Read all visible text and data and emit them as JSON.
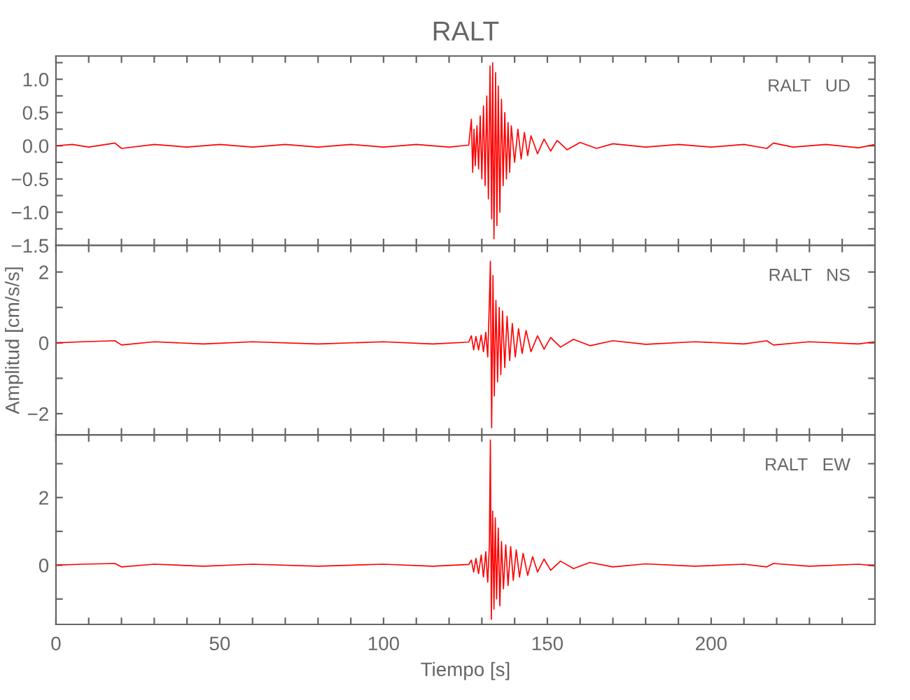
{
  "chart_data": [
    {
      "type": "line",
      "title": "RALT",
      "annotations": [
        "RALT   UD"
      ],
      "tick_labels": "y",
      "xlim": [
        0,
        250
      ],
      "xticks": [
        0,
        {
          "value": 10,
          "label": null
        },
        {
          "value": 20,
          "label": null
        },
        {
          "value": 30,
          "label": null
        },
        {
          "value": 40,
          "label": null
        },
        50,
        {
          "value": 60,
          "label": null
        },
        {
          "value": 70,
          "label": null
        },
        {
          "value": 80,
          "label": null
        },
        {
          "value": 90,
          "label": null
        },
        100,
        {
          "value": 110,
          "label": null
        },
        {
          "value": 120,
          "label": null
        },
        {
          "value": 130,
          "label": null
        },
        {
          "value": 140,
          "label": null
        },
        150,
        {
          "value": 160,
          "label": null
        },
        {
          "value": 170,
          "label": null
        },
        {
          "value": 180,
          "label": null
        },
        {
          "value": 190,
          "label": null
        },
        200,
        {
          "value": 210,
          "label": null
        },
        {
          "value": 220,
          "label": null
        },
        {
          "value": 230,
          "label": null
        },
        {
          "value": 240,
          "label": null
        }
      ],
      "ylim": [
        -1.5,
        1.35
      ],
      "yticks": [
        {
          "value": -1.5,
          "label": "−1.5"
        },
        {
          "value": -1.25,
          "label": null
        },
        {
          "value": -1.0,
          "label": "−1.0"
        },
        {
          "value": -0.75,
          "label": null
        },
        {
          "value": -0.5,
          "label": "−0.5"
        },
        {
          "value": -0.25,
          "label": null
        },
        {
          "value": 0,
          "label": "0.0"
        },
        {
          "value": 0.25,
          "label": null
        },
        {
          "value": 0.5,
          "label": "0.5"
        },
        {
          "value": 0.75,
          "label": null
        },
        {
          "value": 1.0,
          "label": "1.0"
        },
        {
          "value": 1.25,
          "label": null
        }
      ],
      "series": [
        {
          "color": "#ff0000",
          "x": [
            0,
            5,
            10,
            18,
            20,
            30,
            40,
            50,
            60,
            70,
            80,
            90,
            100,
            110,
            120,
            126,
            126.8,
            127.2,
            127.6,
            128,
            128.5,
            129,
            129.5,
            130,
            130.5,
            131,
            131.5,
            132,
            132.5,
            133,
            133.3,
            133.7,
            134.2,
            134.6,
            135,
            135.5,
            136,
            136.5,
            137,
            137.5,
            138,
            138.5,
            139,
            140,
            141,
            142,
            143,
            144,
            145,
            147,
            149,
            151,
            153,
            156,
            160,
            165,
            170,
            180,
            190,
            200,
            210,
            217,
            219,
            225,
            235,
            245,
            250
          ],
          "values": [
            0,
            0.02,
            -0.02,
            0.04,
            -0.04,
            0.02,
            -0.02,
            0.02,
            -0.02,
            0.02,
            -0.02,
            0.02,
            -0.02,
            0.02,
            -0.02,
            0.01,
            0.4,
            -0.4,
            0.25,
            -0.3,
            0.3,
            -0.35,
            0.45,
            -0.5,
            0.6,
            -0.6,
            0.75,
            -0.8,
            1.2,
            -1.1,
            1.25,
            -1.4,
            1.1,
            -1.2,
            0.9,
            -1.0,
            0.7,
            -0.6,
            0.5,
            -0.5,
            0.35,
            -0.4,
            0.3,
            -0.25,
            0.25,
            -0.2,
            0.2,
            -0.15,
            0.15,
            -0.12,
            0.1,
            -0.08,
            0.08,
            -0.06,
            0.05,
            -0.04,
            0.03,
            -0.02,
            0.02,
            -0.02,
            0.02,
            -0.04,
            0.04,
            -0.02,
            0.02,
            -0.03,
            0.02
          ]
        }
      ]
    },
    {
      "type": "line",
      "ylabel": "Amplitud [cm/s/s]",
      "annotations": [
        "RALT   NS"
      ],
      "tick_labels": "y",
      "xlim": [
        0,
        250
      ],
      "xticks": [
        0,
        {
          "value": 10,
          "label": null
        },
        {
          "value": 20,
          "label": null
        },
        {
          "value": 30,
          "label": null
        },
        {
          "value": 40,
          "label": null
        },
        50,
        {
          "value": 60,
          "label": null
        },
        {
          "value": 70,
          "label": null
        },
        {
          "value": 80,
          "label": null
        },
        {
          "value": 90,
          "label": null
        },
        100,
        {
          "value": 110,
          "label": null
        },
        {
          "value": 120,
          "label": null
        },
        {
          "value": 130,
          "label": null
        },
        {
          "value": 140,
          "label": null
        },
        150,
        {
          "value": 160,
          "label": null
        },
        {
          "value": 170,
          "label": null
        },
        {
          "value": 180,
          "label": null
        },
        {
          "value": 190,
          "label": null
        },
        200,
        {
          "value": 210,
          "label": null
        },
        {
          "value": 220,
          "label": null
        },
        {
          "value": 230,
          "label": null
        },
        {
          "value": 240,
          "label": null
        }
      ],
      "ylim": [
        -2.6,
        2.75
      ],
      "yticks": [
        {
          "value": -2,
          "label": "−2"
        },
        {
          "value": -1,
          "label": null
        },
        0,
        {
          "value": 1,
          "label": null
        },
        2
      ],
      "series": [
        {
          "color": "#ff0000",
          "x": [
            0,
            8,
            18,
            20,
            30,
            45,
            60,
            80,
            100,
            115,
            126,
            126.8,
            127.5,
            128.2,
            129,
            129.8,
            130.5,
            131.2,
            131.8,
            132.4,
            132.6,
            133,
            133.4,
            133.8,
            134.3,
            134.8,
            135.3,
            135.8,
            136.3,
            137,
            137.7,
            138.5,
            139.3,
            140.2,
            141.2,
            142.3,
            143.5,
            145,
            147,
            149,
            151,
            154,
            158,
            163,
            170,
            180,
            195,
            210,
            217,
            219,
            230,
            245,
            250
          ],
          "values": [
            0,
            0.03,
            0.06,
            -0.06,
            0.03,
            -0.03,
            0.03,
            -0.03,
            0.03,
            -0.03,
            0.02,
            0.2,
            -0.2,
            0.18,
            -0.2,
            0.22,
            -0.25,
            0.3,
            -0.4,
            1.5,
            2.3,
            -2.4,
            1.9,
            -1.5,
            1.2,
            -1.1,
            1.0,
            -0.9,
            0.9,
            -0.7,
            0.75,
            -0.5,
            0.55,
            -0.4,
            0.4,
            -0.3,
            0.35,
            -0.25,
            0.2,
            -0.18,
            0.15,
            -0.12,
            0.1,
            -0.08,
            0.06,
            -0.04,
            0.03,
            -0.03,
            0.06,
            -0.06,
            0.03,
            -0.03,
            0.03
          ]
        }
      ]
    },
    {
      "type": "line",
      "xlabel": "Tiempo [s]",
      "annotations": [
        "RALT   EW"
      ],
      "xlim": [
        0,
        250
      ],
      "xticks": [
        0,
        {
          "value": 10,
          "label": null
        },
        {
          "value": 20,
          "label": null
        },
        {
          "value": 30,
          "label": null
        },
        {
          "value": 40,
          "label": null
        },
        50,
        {
          "value": 60,
          "label": null
        },
        {
          "value": 70,
          "label": null
        },
        {
          "value": 80,
          "label": null
        },
        {
          "value": 90,
          "label": null
        },
        100,
        {
          "value": 110,
          "label": null
        },
        {
          "value": 120,
          "label": null
        },
        {
          "value": 130,
          "label": null
        },
        {
          "value": 140,
          "label": null
        },
        150,
        {
          "value": 160,
          "label": null
        },
        {
          "value": 170,
          "label": null
        },
        {
          "value": 180,
          "label": null
        },
        {
          "value": 190,
          "label": null
        },
        200,
        {
          "value": 210,
          "label": null
        },
        {
          "value": 220,
          "label": null
        },
        {
          "value": 230,
          "label": null
        },
        {
          "value": 240,
          "label": null
        }
      ],
      "ylim": [
        -1.75,
        3.85
      ],
      "yticks": [
        {
          "value": -1,
          "label": null
        },
        0,
        {
          "value": 1,
          "label": null
        },
        2,
        {
          "value": 3,
          "label": null
        }
      ],
      "series": [
        {
          "color": "#ff0000",
          "x": [
            0,
            8,
            18,
            20,
            30,
            45,
            60,
            80,
            100,
            115,
            126,
            126.8,
            127.5,
            128.2,
            129,
            129.8,
            130.5,
            131.2,
            131.8,
            132.3,
            132.6,
            132.9,
            133.3,
            133.7,
            134.1,
            134.5,
            135,
            135.5,
            136,
            136.6,
            137.3,
            138,
            138.8,
            139.6,
            140.5,
            141.5,
            142.6,
            144,
            145.5,
            147,
            149,
            151,
            154,
            158,
            163,
            170,
            180,
            195,
            210,
            217,
            219,
            230,
            245,
            250
          ],
          "values": [
            0,
            0.03,
            0.05,
            -0.05,
            0.03,
            -0.03,
            0.03,
            -0.03,
            0.03,
            -0.03,
            0.02,
            0.15,
            -0.2,
            0.2,
            -0.25,
            0.3,
            -0.35,
            0.4,
            -0.5,
            0.6,
            3.7,
            -1.6,
            1.6,
            -1.3,
            1.4,
            -1.0,
            1.1,
            -1.2,
            0.7,
            -0.7,
            0.6,
            -0.6,
            0.55,
            -0.45,
            0.45,
            -0.35,
            0.35,
            -0.3,
            0.25,
            -0.2,
            0.18,
            -0.15,
            0.12,
            -0.1,
            0.08,
            -0.05,
            0.04,
            -0.03,
            0.03,
            -0.05,
            0.05,
            -0.03,
            0.03,
            -0.02
          ]
        }
      ]
    }
  ]
}
